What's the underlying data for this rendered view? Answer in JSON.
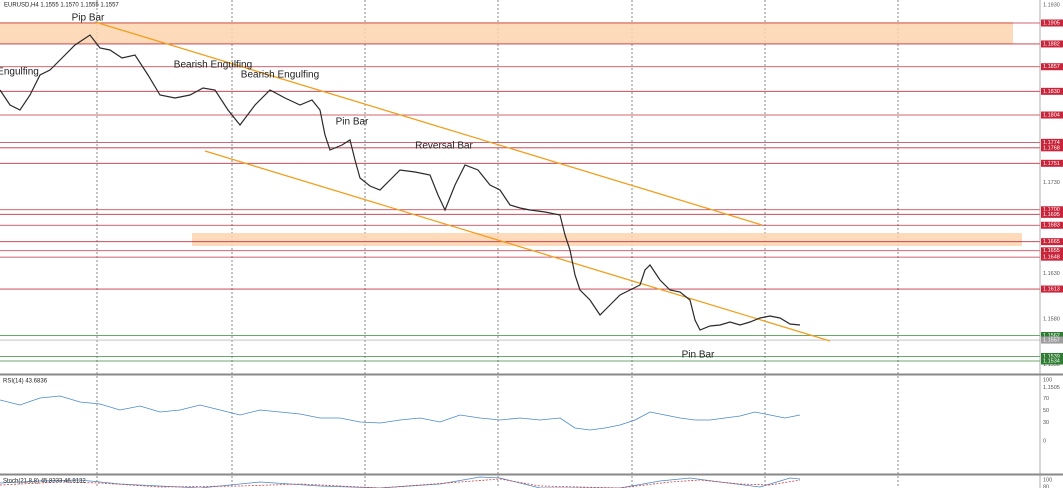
{
  "header": {
    "symbol_info": "EURUSD,H4  1.1555 1.1570 1.1555 1.1557"
  },
  "price_axis": {
    "ticks": [
      "1.1930",
      "1.1730",
      "1.1630",
      "1.1580",
      "1.1530",
      "1.1505"
    ]
  },
  "levels": {
    "resistance": [
      "1.1905",
      "1.1882",
      "1.1857",
      "1.1830",
      "1.1804",
      "1.1774",
      "1.1768",
      "1.1751",
      "1.1700",
      "1.1695",
      "1.1683",
      "1.1665",
      "1.1655",
      "1.1648",
      "1.1613"
    ],
    "support": [
      "1.1562",
      "1.1539",
      "1.1534"
    ],
    "current_price": "1.1557"
  },
  "annotations": [
    "Pip Bar",
    "Engulfing",
    "Bearish Engulfing",
    "Bearish Engulfing",
    "Pin Bar",
    "Reversal Bar",
    "Pin Bar"
  ],
  "rsi": {
    "label": "RSI(14) 43.6836",
    "scale": [
      "100",
      "70",
      "50",
      "30",
      "0"
    ]
  },
  "stochastic": {
    "label": "Stoch(21,8,8) 45.8333 46.8132",
    "scale": [
      "100",
      "80"
    ]
  }
}
